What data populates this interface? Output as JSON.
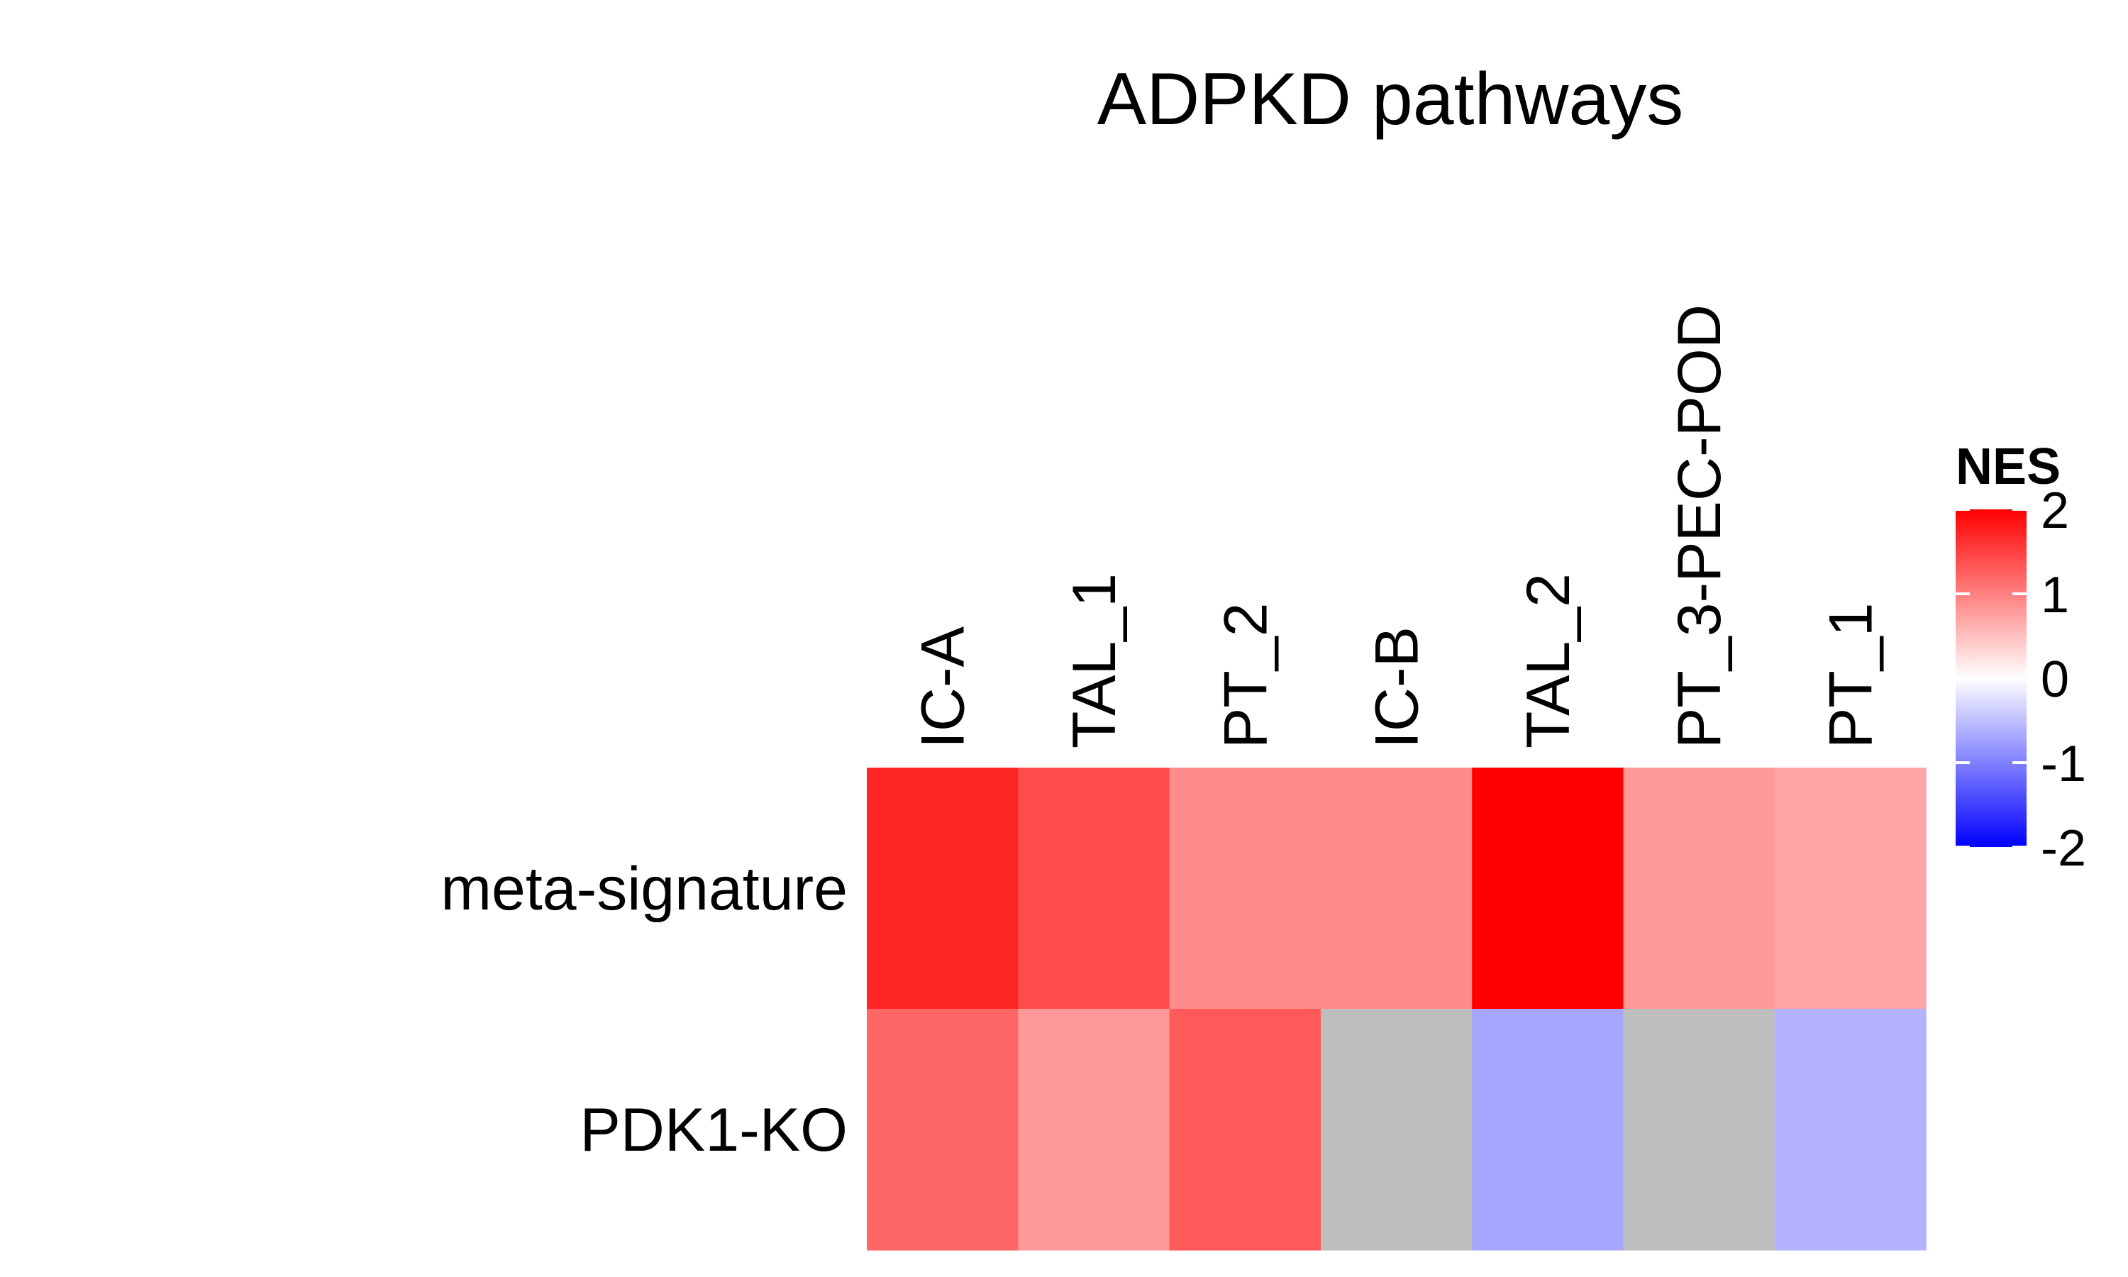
{
  "chart_data": {
    "type": "heatmap",
    "title": "ADPKD pathways",
    "x_categories": [
      "IC-A",
      "TAL_1",
      "PT_2",
      "IC-B",
      "TAL_2",
      "PT_3-PEC-POD",
      "PT_1"
    ],
    "y_categories": [
      "meta-signature",
      "PDK1-KO"
    ],
    "values": [
      [
        1.7,
        1.4,
        0.9,
        0.9,
        2.0,
        0.8,
        0.7
      ],
      [
        1.2,
        0.8,
        1.3,
        null,
        -0.7,
        null,
        -0.6
      ]
    ],
    "legend": {
      "title": "NES",
      "ticks": [
        2,
        1,
        0,
        -1,
        -2
      ],
      "range": [
        -2,
        2
      ],
      "placement": "right",
      "colors": {
        "low": "#0000ff",
        "mid": "#ffffff",
        "high": "#ff0000"
      }
    },
    "na_color": "#bebebe",
    "grid": false
  }
}
